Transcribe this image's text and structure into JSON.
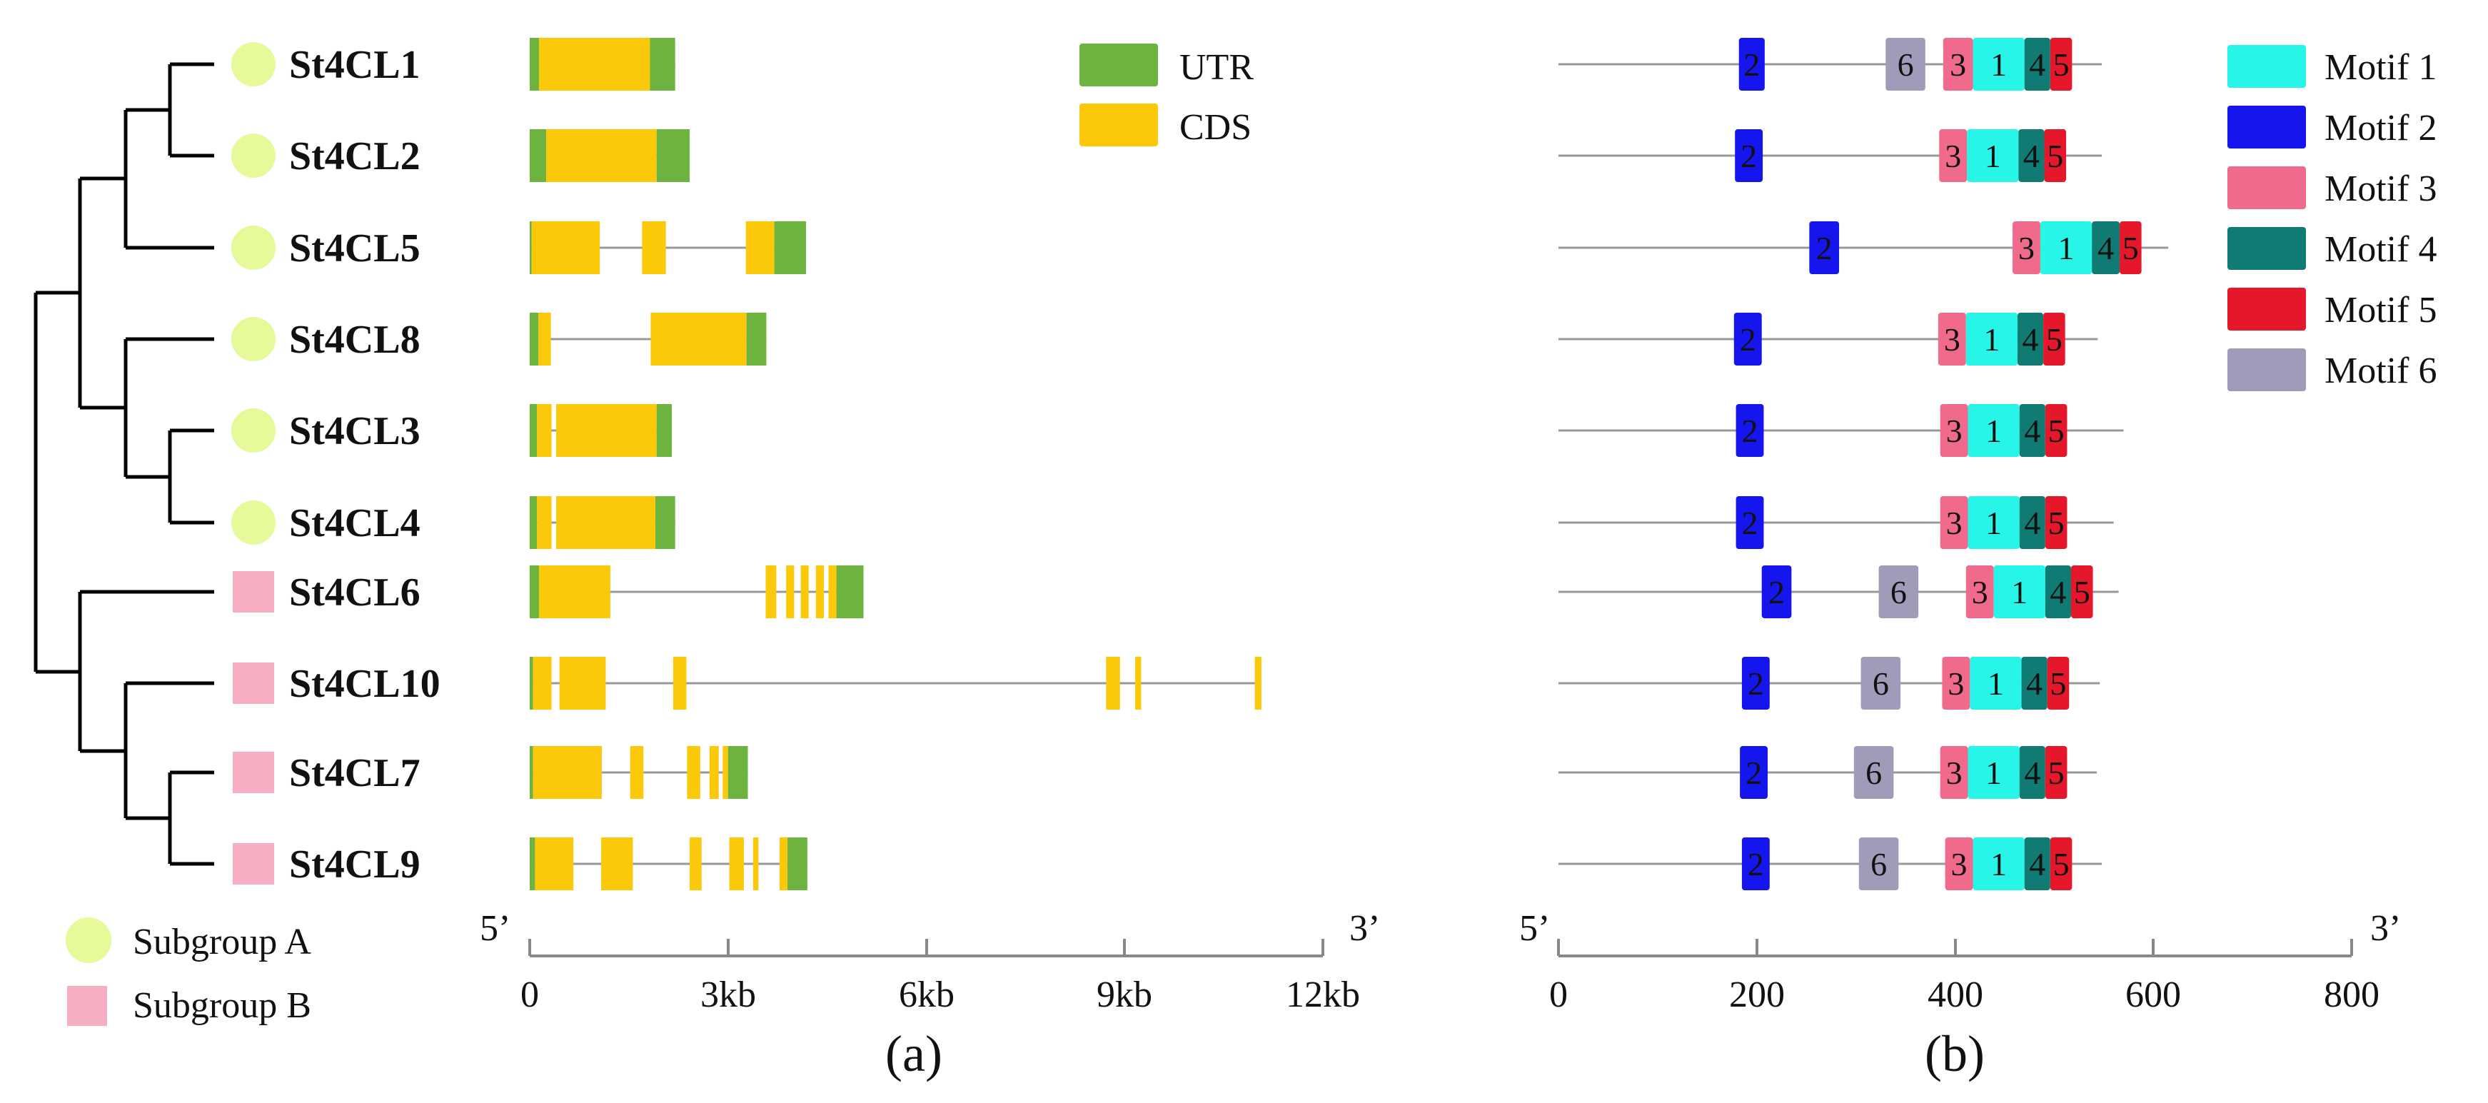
{
  "genes": [
    {
      "name": "St4CL1",
      "subgroup": "A",
      "structure": [
        {
          "type": "UTR",
          "start": 0.0,
          "end": 0.14
        },
        {
          "type": "CDS",
          "start": 0.14,
          "end": 1.82
        },
        {
          "type": "UTR",
          "start": 1.82,
          "end": 2.2
        }
      ],
      "protein_length": 548,
      "motifs": [
        {
          "id": "2",
          "start": 182,
          "end": 208
        },
        {
          "id": "6",
          "start": 330,
          "end": 370
        },
        {
          "id": "3",
          "start": 388,
          "end": 418
        },
        {
          "id": "1",
          "start": 418,
          "end": 470
        },
        {
          "id": "4",
          "start": 470,
          "end": 496
        },
        {
          "id": "5",
          "start": 496,
          "end": 518
        }
      ]
    },
    {
      "name": "St4CL2",
      "subgroup": "A",
      "structure": [
        {
          "type": "UTR",
          "start": 0.0,
          "end": 0.25
        },
        {
          "type": "CDS",
          "start": 0.25,
          "end": 1.92
        },
        {
          "type": "UTR",
          "start": 1.92,
          "end": 2.42
        }
      ],
      "protein_length": 548,
      "motifs": [
        {
          "id": "2",
          "start": 178,
          "end": 206
        },
        {
          "id": "3",
          "start": 384,
          "end": 412
        },
        {
          "id": "1",
          "start": 412,
          "end": 464
        },
        {
          "id": "4",
          "start": 464,
          "end": 490
        },
        {
          "id": "5",
          "start": 490,
          "end": 512
        }
      ]
    },
    {
      "name": "St4CL5",
      "subgroup": "A",
      "structure": [
        {
          "type": "UTR",
          "start": 0.0,
          "end": 0.03
        },
        {
          "type": "CDS",
          "start": 0.03,
          "end": 1.06
        },
        {
          "type": "CDS",
          "start": 1.7,
          "end": 2.06
        },
        {
          "type": "CDS",
          "start": 3.27,
          "end": 3.7
        },
        {
          "type": "UTR",
          "start": 3.7,
          "end": 4.18
        }
      ],
      "protein_length": 615,
      "motifs": [
        {
          "id": "2",
          "start": 253,
          "end": 283
        },
        {
          "id": "3",
          "start": 458,
          "end": 486
        },
        {
          "id": "1",
          "start": 486,
          "end": 538
        },
        {
          "id": "4",
          "start": 538,
          "end": 566
        },
        {
          "id": "5",
          "start": 566,
          "end": 588
        }
      ]
    },
    {
      "name": "St4CL8",
      "subgroup": "A",
      "structure": [
        {
          "type": "UTR",
          "start": 0.0,
          "end": 0.13
        },
        {
          "type": "CDS",
          "start": 0.13,
          "end": 0.32
        },
        {
          "type": "CDS",
          "start": 1.83,
          "end": 3.28
        },
        {
          "type": "UTR",
          "start": 3.28,
          "end": 3.58
        }
      ],
      "protein_length": 544,
      "motifs": [
        {
          "id": "2",
          "start": 177,
          "end": 205
        },
        {
          "id": "3",
          "start": 383,
          "end": 411
        },
        {
          "id": "1",
          "start": 411,
          "end": 463
        },
        {
          "id": "4",
          "start": 463,
          "end": 489
        },
        {
          "id": "5",
          "start": 489,
          "end": 511
        }
      ]
    },
    {
      "name": "St4CL3",
      "subgroup": "A",
      "structure": [
        {
          "type": "UTR",
          "start": 0.0,
          "end": 0.11
        },
        {
          "type": "CDS",
          "start": 0.11,
          "end": 0.33
        },
        {
          "type": "CDS",
          "start": 0.4,
          "end": 1.92
        },
        {
          "type": "UTR",
          "start": 1.92,
          "end": 2.15
        }
      ],
      "protein_length": 570,
      "motifs": [
        {
          "id": "2",
          "start": 179,
          "end": 207
        },
        {
          "id": "3",
          "start": 385,
          "end": 413
        },
        {
          "id": "1",
          "start": 413,
          "end": 465
        },
        {
          "id": "4",
          "start": 465,
          "end": 491
        },
        {
          "id": "5",
          "start": 491,
          "end": 513
        }
      ]
    },
    {
      "name": "St4CL4",
      "subgroup": "A",
      "structure": [
        {
          "type": "UTR",
          "start": 0.0,
          "end": 0.11
        },
        {
          "type": "CDS",
          "start": 0.11,
          "end": 0.33
        },
        {
          "type": "CDS",
          "start": 0.4,
          "end": 1.9
        },
        {
          "type": "UTR",
          "start": 1.9,
          "end": 2.2
        }
      ],
      "protein_length": 560,
      "motifs": [
        {
          "id": "2",
          "start": 179,
          "end": 207
        },
        {
          "id": "3",
          "start": 385,
          "end": 413
        },
        {
          "id": "1",
          "start": 413,
          "end": 465
        },
        {
          "id": "4",
          "start": 465,
          "end": 491
        },
        {
          "id": "5",
          "start": 491,
          "end": 513
        }
      ]
    },
    {
      "name": "St4CL6",
      "subgroup": "B",
      "structure": [
        {
          "type": "UTR",
          "start": 0.0,
          "end": 0.14
        },
        {
          "type": "CDS",
          "start": 0.14,
          "end": 1.22
        },
        {
          "type": "CDS",
          "start": 3.57,
          "end": 3.73
        },
        {
          "type": "CDS",
          "start": 3.88,
          "end": 4.0
        },
        {
          "type": "CDS",
          "start": 4.1,
          "end": 4.22
        },
        {
          "type": "CDS",
          "start": 4.33,
          "end": 4.45
        },
        {
          "type": "CDS",
          "start": 4.52,
          "end": 4.64
        },
        {
          "type": "UTR",
          "start": 4.64,
          "end": 5.05
        }
      ],
      "protein_length": 565,
      "motifs": [
        {
          "id": "2",
          "start": 205,
          "end": 235
        },
        {
          "id": "6",
          "start": 323,
          "end": 363
        },
        {
          "id": "3",
          "start": 411,
          "end": 439
        },
        {
          "id": "1",
          "start": 439,
          "end": 491
        },
        {
          "id": "4",
          "start": 491,
          "end": 517
        },
        {
          "id": "5",
          "start": 517,
          "end": 539
        }
      ]
    },
    {
      "name": "St4CL10",
      "subgroup": "B",
      "structure": [
        {
          "type": "UTR",
          "start": 0.0,
          "end": 0.05
        },
        {
          "type": "CDS",
          "start": 0.05,
          "end": 0.33
        },
        {
          "type": "CDS",
          "start": 0.45,
          "end": 1.15
        },
        {
          "type": "CDS",
          "start": 2.17,
          "end": 2.37
        },
        {
          "type": "CDS",
          "start": 8.72,
          "end": 8.93
        },
        {
          "type": "CDS",
          "start": 9.16,
          "end": 9.25
        },
        {
          "type": "CDS",
          "start": 10.97,
          "end": 11.07
        }
      ],
      "protein_length": 546,
      "motifs": [
        {
          "id": "2",
          "start": 185,
          "end": 213
        },
        {
          "id": "6",
          "start": 305,
          "end": 345
        },
        {
          "id": "3",
          "start": 387,
          "end": 415
        },
        {
          "id": "1",
          "start": 415,
          "end": 467
        },
        {
          "id": "4",
          "start": 467,
          "end": 493
        },
        {
          "id": "5",
          "start": 493,
          "end": 515
        }
      ]
    },
    {
      "name": "St4CL7",
      "subgroup": "B",
      "structure": [
        {
          "type": "UTR",
          "start": 0.0,
          "end": 0.05
        },
        {
          "type": "CDS",
          "start": 0.05,
          "end": 1.09
        },
        {
          "type": "CDS",
          "start": 1.52,
          "end": 1.72
        },
        {
          "type": "CDS",
          "start": 2.38,
          "end": 2.58
        },
        {
          "type": "CDS",
          "start": 2.72,
          "end": 2.86
        },
        {
          "type": "CDS",
          "start": 2.92,
          "end": 3.0
        },
        {
          "type": "UTR",
          "start": 3.0,
          "end": 3.3
        }
      ],
      "protein_length": 543,
      "motifs": [
        {
          "id": "2",
          "start": 183,
          "end": 211
        },
        {
          "id": "6",
          "start": 298,
          "end": 338
        },
        {
          "id": "3",
          "start": 385,
          "end": 413
        },
        {
          "id": "1",
          "start": 413,
          "end": 465
        },
        {
          "id": "4",
          "start": 465,
          "end": 491
        },
        {
          "id": "5",
          "start": 491,
          "end": 513
        }
      ]
    },
    {
      "name": "St4CL9",
      "subgroup": "B",
      "structure": [
        {
          "type": "UTR",
          "start": 0.0,
          "end": 0.08
        },
        {
          "type": "CDS",
          "start": 0.08,
          "end": 0.66
        },
        {
          "type": "CDS",
          "start": 1.08,
          "end": 1.56
        },
        {
          "type": "CDS",
          "start": 2.42,
          "end": 2.6
        },
        {
          "type": "CDS",
          "start": 3.02,
          "end": 3.24
        },
        {
          "type": "CDS",
          "start": 3.38,
          "end": 3.46
        },
        {
          "type": "CDS",
          "start": 3.78,
          "end": 3.9
        },
        {
          "type": "UTR",
          "start": 3.9,
          "end": 4.2
        }
      ],
      "protein_length": 548,
      "motifs": [
        {
          "id": "2",
          "start": 185,
          "end": 213
        },
        {
          "id": "6",
          "start": 303,
          "end": 343
        },
        {
          "id": "3",
          "start": 390,
          "end": 418
        },
        {
          "id": "1",
          "start": 418,
          "end": 470
        },
        {
          "id": "4",
          "start": 470,
          "end": 496
        },
        {
          "id": "5",
          "start": 496,
          "end": 518
        }
      ]
    }
  ],
  "subgroup_legend": [
    {
      "key": "A",
      "label": "Subgroup A",
      "shape": "circle",
      "color": "#e6fa9a"
    },
    {
      "key": "B",
      "label": "Subgroup B",
      "shape": "square",
      "color": "#f7aec2"
    }
  ],
  "structure_legend": [
    {
      "type": "UTR",
      "label": "UTR",
      "color": "#6cb33f"
    },
    {
      "type": "CDS",
      "label": "CDS",
      "color": "#fcc80a"
    }
  ],
  "structure_axis": {
    "min": 0,
    "max": 12,
    "ticks": [
      "0",
      "3kb",
      "6kb",
      "9kb",
      "12kb"
    ],
    "start_label": "5’",
    "end_label": "3’"
  },
  "motif_axis": {
    "min": 0,
    "max": 800,
    "ticks": [
      "0",
      "200",
      "400",
      "600",
      "800"
    ],
    "start_label": "5’",
    "end_label": "3’"
  },
  "motif_legend": [
    {
      "id": "1",
      "label": "Motif 1",
      "color": "#27f5e8"
    },
    {
      "id": "2",
      "label": "Motif 2",
      "color": "#1515ee"
    },
    {
      "id": "3",
      "label": "Motif 3",
      "color": "#f06a8c"
    },
    {
      "id": "4",
      "label": "Motif 4",
      "color": "#0f7b72"
    },
    {
      "id": "5",
      "label": "Motif 5",
      "color": "#e4182a"
    },
    {
      "id": "6",
      "label": "Motif 6",
      "color": "#9e9cb8"
    }
  ],
  "panel_labels": {
    "a": "(a)",
    "b": "(b)"
  }
}
